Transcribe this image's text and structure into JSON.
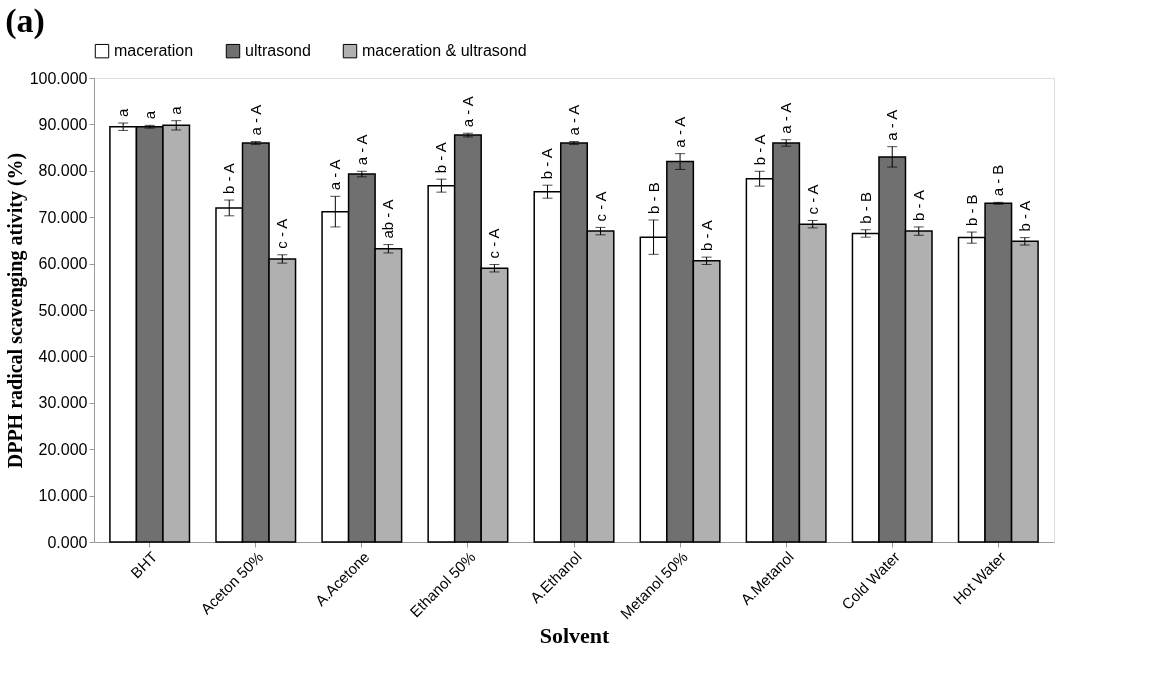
{
  "chart_data": {
    "type": "bar",
    "title": "(a)",
    "xlabel": "Solvent",
    "ylabel": "DPPH radical scavenging ativity (%)",
    "categories": [
      "BHT",
      "Aceton 50%",
      "A.Acetone",
      "Ethanol 50%",
      "A.Ethanol",
      "Metanol 50%",
      "A.Metanol",
      "Cold Water",
      "Hot Water"
    ],
    "series": [
      {
        "name": "maceration",
        "color": "#ffffff",
        "values": [
          89.5,
          72.0,
          71.2,
          76.8,
          75.5,
          65.7,
          78.3,
          66.5,
          65.6
        ],
        "errors": [
          0.8,
          1.7,
          3.3,
          1.4,
          1.4,
          3.7,
          1.6,
          0.8,
          1.2
        ],
        "value_labels": [
          "a",
          "b - A",
          "a - A",
          "b - A",
          "b - A",
          "b - B",
          "b - A",
          "b - B",
          "b - B"
        ]
      },
      {
        "name": "ultrasond",
        "color": "#707070",
        "values": [
          89.5,
          86.0,
          79.3,
          87.7,
          86.0,
          82.0,
          86.0,
          83.0,
          73.0
        ],
        "errors": [
          0.3,
          0.3,
          0.6,
          0.4,
          0.3,
          1.7,
          0.7,
          2.2,
          0.2
        ],
        "value_labels": [
          "a",
          "a - A",
          "a - A",
          "a - A",
          "a - A",
          "a - A",
          "a - A",
          "a - A",
          "a - B"
        ]
      },
      {
        "name": "maceration & ultrasond",
        "color": "#b0b0b0",
        "values": [
          89.8,
          61.0,
          63.2,
          59.0,
          67.0,
          60.6,
          68.5,
          67.0,
          64.8
        ],
        "errors": [
          1.0,
          0.9,
          0.9,
          0.8,
          0.8,
          0.8,
          0.8,
          0.9,
          0.8
        ],
        "value_labels": [
          "a",
          "c - A",
          "ab - A",
          "c - A",
          "c - A",
          "b - A",
          "c - A",
          "b - A",
          "b - A"
        ]
      }
    ],
    "ylim": [
      0,
      100
    ],
    "yticks": [
      {
        "value": 0,
        "label": "0.000"
      },
      {
        "value": 10,
        "label": "10.000"
      },
      {
        "value": 20,
        "label": "20.000"
      },
      {
        "value": 30,
        "label": "30.000"
      },
      {
        "value": 40,
        "label": "40.000"
      },
      {
        "value": 50,
        "label": "50.000"
      },
      {
        "value": 60,
        "label": "60.000"
      },
      {
        "value": 70,
        "label": "70.000"
      },
      {
        "value": 80,
        "label": "80.000"
      },
      {
        "value": 90,
        "label": "90.000"
      },
      {
        "value": 100,
        "label": "100.000"
      }
    ],
    "grid": false,
    "legend": "top"
  }
}
